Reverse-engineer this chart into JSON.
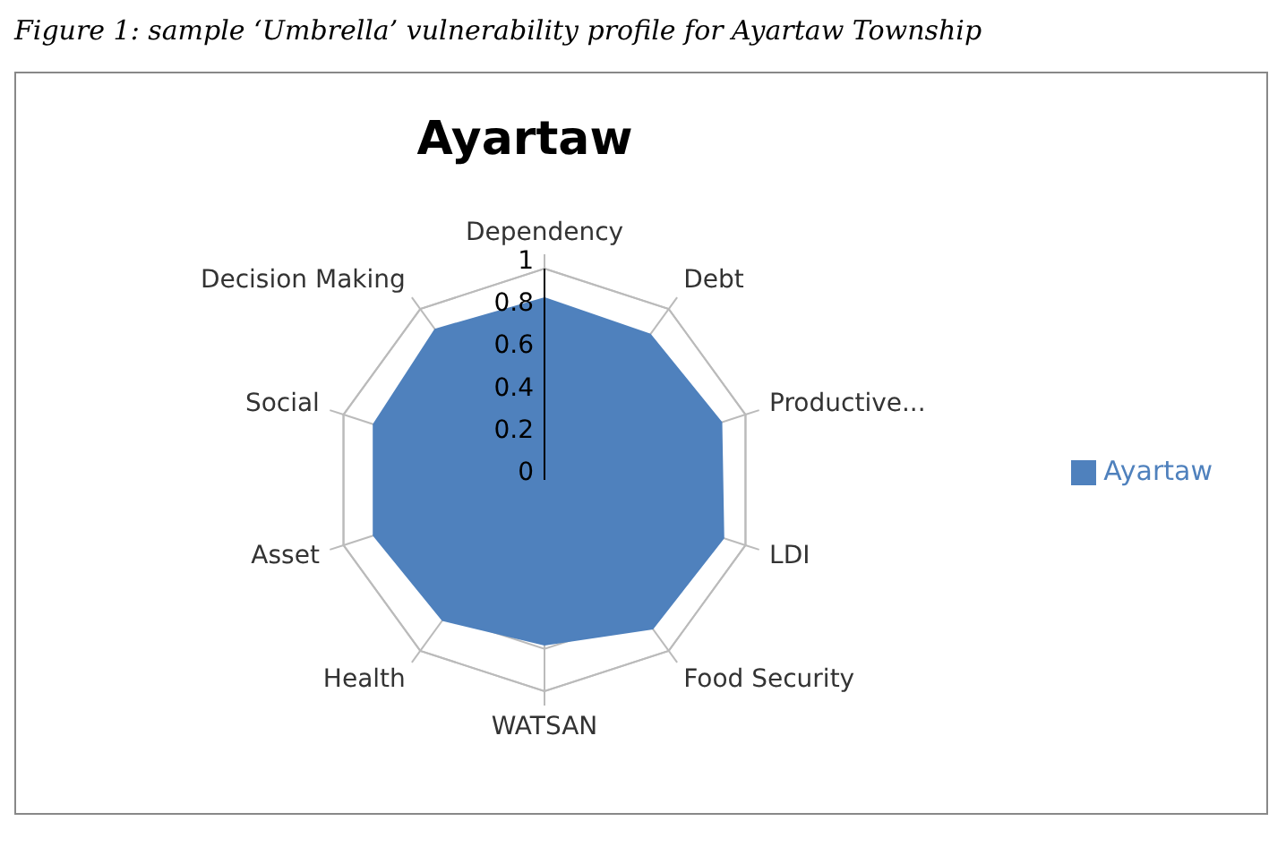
{
  "chart_data": {
    "type": "radar",
    "title": "Ayartaw",
    "annotations": [
      "Figure 1: sample ‘Umbrella’ vulnerability profile for Ayartaw Township"
    ],
    "categories": [
      "Dependency",
      "Debt",
      "Productive...",
      "LDI",
      "Food Security",
      "WATSAN",
      "Health",
      "Asset",
      "Social",
      "Decision Making"
    ],
    "series": [
      {
        "name": "Ayartaw",
        "color": "#4f81bd",
        "values": [
          0.86,
          0.85,
          0.88,
          0.89,
          0.87,
          0.78,
          0.82,
          0.85,
          0.85,
          0.88
        ]
      }
    ],
    "ylim": [
      0,
      1
    ],
    "yticks": [
      0,
      0.2,
      0.4,
      0.6,
      0.8,
      1
    ],
    "grid": true,
    "legend": "right"
  }
}
